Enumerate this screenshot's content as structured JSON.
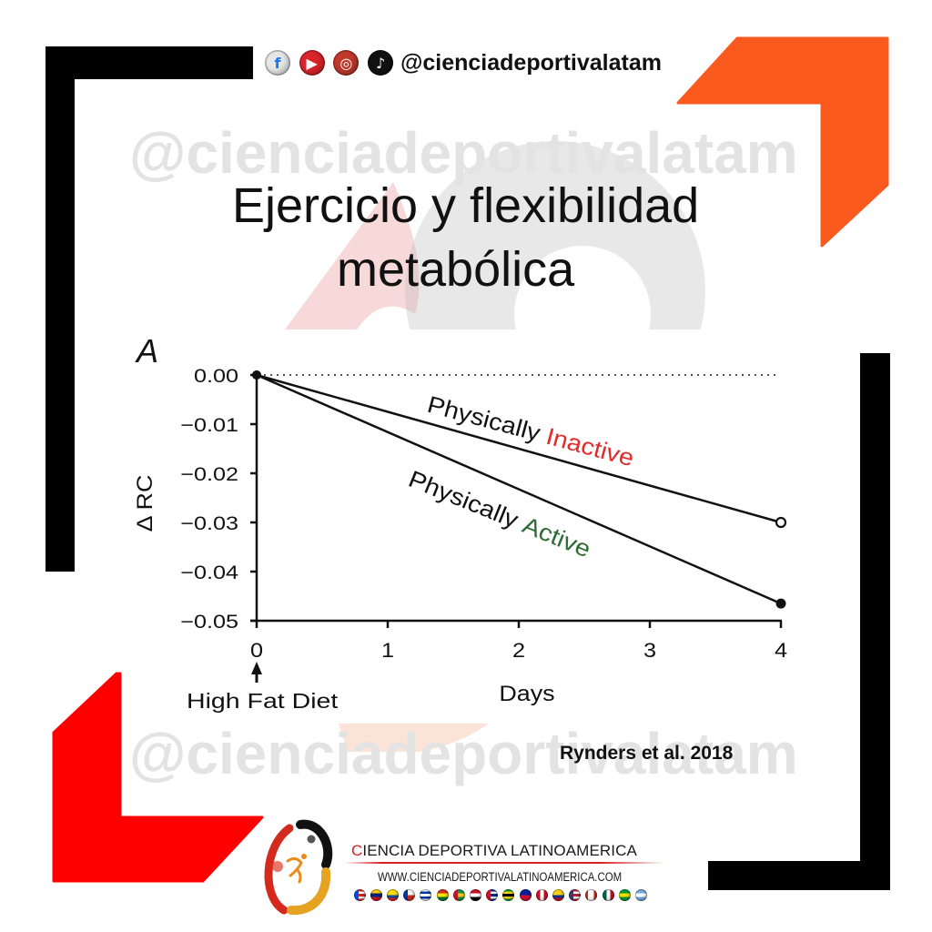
{
  "header": {
    "handle": "@cienciadeportivalatam",
    "social_icons": [
      {
        "name": "facebook",
        "glyph": "f",
        "bg": "#e6e6e6",
        "fg": "#1877f2"
      },
      {
        "name": "youtube",
        "glyph": "▶",
        "bg": "#d9252a",
        "fg": "#ffffff"
      },
      {
        "name": "instagram",
        "glyph": "◎",
        "bg": "#c0392b",
        "fg": "#ffffff"
      },
      {
        "name": "tiktok",
        "glyph": "♪",
        "bg": "#111111",
        "fg": "#ffffff"
      }
    ]
  },
  "watermark": {
    "top_text": "@cienciadeportivalatam",
    "bottom_text": "@cienciadeportivalatam"
  },
  "title": {
    "line1": "Ejercicio y flexibilidad",
    "line2": "metabólica"
  },
  "citation": "Rynders et al. 2018",
  "footer": {
    "brand_first_letter": "C",
    "brand_rest": "IENCIA DEPORTIVA LATINOAMERICA",
    "url": "WWW.CIENCIADEPORTIVALATINOAMERICA.COM",
    "flags": [
      {
        "name": "puerto-rico",
        "stripes": [
          "#d52b1e",
          "#ffffff",
          "#d52b1e",
          "#ffffff",
          "#d52b1e"
        ],
        "hoist": "#0050f0"
      },
      {
        "name": "venezuela",
        "stripes": [
          "#ffcc00",
          "#00247d",
          "#cf142b"
        ]
      },
      {
        "name": "ecuador",
        "stripes": [
          "#ffdd00",
          "#ffdd00",
          "#034ea2",
          "#ed1c24"
        ]
      },
      {
        "name": "chile",
        "stripes": [
          "#ffffff",
          "#d52b1e"
        ],
        "hoist": "#0039a6"
      },
      {
        "name": "uruguay",
        "stripes": [
          "#ffffff",
          "#0038a8",
          "#ffffff",
          "#0038a8",
          "#ffffff"
        ]
      },
      {
        "name": "bolivia",
        "stripes": [
          "#d52b1e",
          "#f9e300",
          "#007934"
        ]
      },
      {
        "name": "guyana",
        "stripes": [
          "#009e49",
          "#fcd116",
          "#009e49"
        ],
        "hoist": "#ce1126"
      },
      {
        "name": "red-white-black",
        "stripes": [
          "#ce1126",
          "#ffffff",
          "#000000"
        ]
      },
      {
        "name": "cuba",
        "stripes": [
          "#002a8f",
          "#ffffff",
          "#002a8f",
          "#ffffff",
          "#002a8f"
        ],
        "hoist": "#cf142b"
      },
      {
        "name": "jamaica",
        "stripes": [
          "#009b3a",
          "#fed100",
          "#000000",
          "#fed100",
          "#009b3a"
        ]
      },
      {
        "name": "haiti",
        "stripes": [
          "#00209f",
          "#d21034"
        ]
      },
      {
        "name": "peru",
        "stripes": [
          "#d91023",
          "#ffffff",
          "#d91023"
        ],
        "dir": "v"
      },
      {
        "name": "colombia",
        "stripes": [
          "#fcd116",
          "#fcd116",
          "#003893",
          "#ce1126"
        ]
      },
      {
        "name": "usa",
        "stripes": [
          "#b22234",
          "#ffffff",
          "#b22234",
          "#ffffff",
          "#b22234"
        ],
        "hoist": "#3c3b6e"
      },
      {
        "name": "canada",
        "stripes": [
          "#d52b1e",
          "#ffffff",
          "#ffffff",
          "#d52b1e"
        ],
        "dir": "v"
      },
      {
        "name": "mexico",
        "stripes": [
          "#006847",
          "#ffffff",
          "#ce1126"
        ],
        "dir": "v"
      },
      {
        "name": "brazil",
        "stripes": [
          "#009c3b",
          "#ffdf00",
          "#009c3b"
        ]
      },
      {
        "name": "argentina",
        "stripes": [
          "#74acdf",
          "#ffffff",
          "#74acdf"
        ]
      }
    ]
  },
  "colors": {
    "frame_black": "#000000",
    "corner_orange": "#fb5a1f",
    "corner_red": "#fe0000",
    "watermark_gray": "#e3e3e3",
    "inactive_red": "#e32b2b",
    "active_green": "#2f6b35"
  },
  "chart_data": {
    "type": "line",
    "panel_label": "A",
    "title": "",
    "xlabel": "Days",
    "ylabel": "Δ RC",
    "xticks": [
      0,
      1,
      2,
      3,
      4
    ],
    "xtick_labels": [
      "0",
      "1",
      "2",
      "3",
      "4"
    ],
    "yticks": [
      0.0,
      -0.01,
      -0.02,
      -0.03,
      -0.04,
      -0.05
    ],
    "ytick_labels": [
      "0.00",
      "−0.01",
      "−0.02",
      "−0.03",
      "−0.04",
      "−0.05"
    ],
    "xlim": [
      0,
      4
    ],
    "ylim": [
      -0.05,
      0.0
    ],
    "grid": false,
    "legend": "inline labels along lines",
    "reference_line": {
      "y": 0.0,
      "style": "dotted"
    },
    "series": [
      {
        "name": "Physically Inactive",
        "label_prefix": "Physically",
        "label_suffix": "Inactive",
        "label_color": "#e32b2b",
        "x": [
          0,
          4
        ],
        "values": [
          0.0,
          -0.03
        ],
        "end_marker": "open-circle"
      },
      {
        "name": "Physically Active",
        "label_prefix": "Physically",
        "label_suffix": "Active",
        "label_color": "#2f6b35",
        "x": [
          0,
          4
        ],
        "values": [
          0.0,
          -0.0465
        ],
        "end_marker": "filled-circle"
      }
    ],
    "annotations": [
      {
        "text": "High Fat Diet",
        "x": 0,
        "arrow": "up"
      }
    ]
  }
}
